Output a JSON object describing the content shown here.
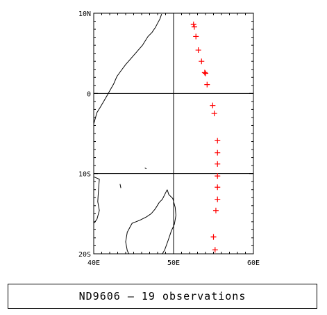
{
  "map": {
    "lon_range": [
      40,
      60
    ],
    "lat_range": [
      -20,
      10
    ],
    "lon_ticks": [
      {
        "value": 40,
        "label": "40E"
      },
      {
        "value": 50,
        "label": "50E"
      },
      {
        "value": 60,
        "label": "60E"
      }
    ],
    "lat_ticks": [
      {
        "value": 10,
        "label": "10N"
      },
      {
        "value": 0,
        "label": "0"
      },
      {
        "value": -10,
        "label": "10S"
      },
      {
        "value": -20,
        "label": "20S"
      }
    ],
    "grid_lons": [
      50
    ],
    "grid_lats": [
      0,
      -10
    ],
    "marker_color": "#ff0000",
    "marker_symbol": "plus",
    "observations": [
      {
        "lon": 52.5,
        "lat": 8.6
      },
      {
        "lon": 52.6,
        "lat": 8.3
      },
      {
        "lon": 52.8,
        "lat": 7.1
      },
      {
        "lon": 53.1,
        "lat": 5.4
      },
      {
        "lon": 53.5,
        "lat": 4.0
      },
      {
        "lon": 53.9,
        "lat": 2.6
      },
      {
        "lon": 54.0,
        "lat": 2.5
      },
      {
        "lon": 54.2,
        "lat": 1.1
      },
      {
        "lon": 54.9,
        "lat": -1.5
      },
      {
        "lon": 55.1,
        "lat": -2.5
      },
      {
        "lon": 55.5,
        "lat": -5.9
      },
      {
        "lon": 55.5,
        "lat": -7.4
      },
      {
        "lon": 55.5,
        "lat": -8.8
      },
      {
        "lon": 55.5,
        "lat": -10.3
      },
      {
        "lon": 55.5,
        "lat": -11.7
      },
      {
        "lon": 55.5,
        "lat": -13.2
      },
      {
        "lon": 55.3,
        "lat": -14.6
      },
      {
        "lon": 55.0,
        "lat": -17.9
      },
      {
        "lon": 55.2,
        "lat": -19.5
      }
    ],
    "coastline_africa": [
      [
        48.5,
        9.9
      ],
      [
        48.3,
        9.3
      ],
      [
        47.7,
        8.2
      ],
      [
        47.3,
        7.6
      ],
      [
        46.8,
        7.1
      ],
      [
        46.1,
        6.0
      ],
      [
        45.4,
        5.2
      ],
      [
        44.7,
        4.4
      ],
      [
        44.0,
        3.6
      ],
      [
        43.4,
        2.8
      ],
      [
        42.9,
        2.1
      ],
      [
        42.5,
        1.2
      ],
      [
        42.1,
        0.5
      ],
      [
        41.6,
        -0.4
      ],
      [
        40.9,
        -1.6
      ],
      [
        40.4,
        -2.4
      ],
      [
        40.0,
        -3.8
      ]
    ],
    "coastline_madagascar": [
      [
        49.2,
        -12.0
      ],
      [
        49.4,
        -12.6
      ],
      [
        49.9,
        -13.1
      ],
      [
        50.2,
        -14.2
      ],
      [
        50.3,
        -15.2
      ],
      [
        50.1,
        -16.3
      ],
      [
        49.7,
        -17.2
      ],
      [
        49.3,
        -18.4
      ],
      [
        48.9,
        -19.5
      ],
      [
        48.6,
        -20.0
      ],
      [
        44.4,
        -20.0
      ],
      [
        44.2,
        -19.6
      ],
      [
        44.0,
        -18.5
      ],
      [
        44.2,
        -17.3
      ],
      [
        44.8,
        -16.2
      ],
      [
        45.8,
        -15.8
      ],
      [
        46.6,
        -15.4
      ],
      [
        47.2,
        -15.0
      ],
      [
        47.7,
        -14.4
      ],
      [
        48.2,
        -13.6
      ],
      [
        48.6,
        -13.2
      ],
      [
        49.0,
        -12.4
      ],
      [
        49.2,
        -12.0
      ]
    ],
    "coastline_mainland_south": [
      [
        40.0,
        -10.4
      ],
      [
        40.7,
        -10.7
      ],
      [
        40.6,
        -12.0
      ],
      [
        40.5,
        -13.5
      ],
      [
        40.7,
        -14.6
      ],
      [
        40.4,
        -15.7
      ],
      [
        40.0,
        -16.2
      ]
    ],
    "islands": [
      [
        [
          46.4,
          -9.3
        ],
        [
          46.6,
          -9.4
        ]
      ],
      [
        [
          43.3,
          -11.3
        ],
        [
          43.4,
          -11.8
        ]
      ]
    ]
  },
  "caption": {
    "text": "ND9606 – 19 observations"
  }
}
